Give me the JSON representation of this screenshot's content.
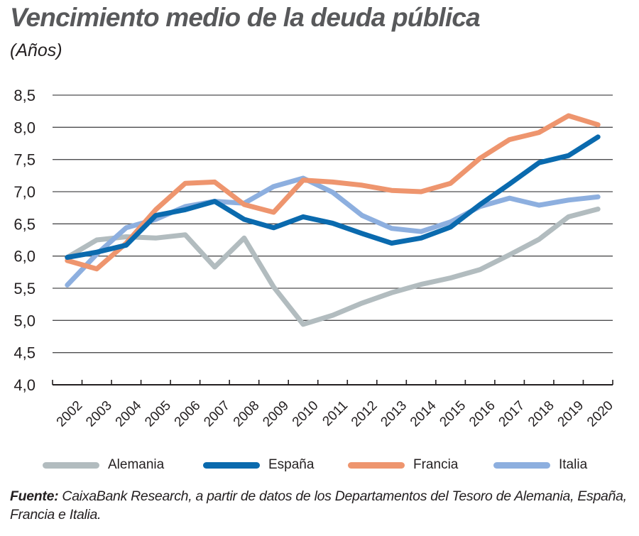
{
  "chart_data": {
    "type": "line",
    "title": "Vencimiento medio de la deuda pública",
    "subtitle": "(Años)",
    "xlabel": "",
    "ylabel": "",
    "x": [
      "2002",
      "2003",
      "2004",
      "2005",
      "2006",
      "2007",
      "2008",
      "2009",
      "2010",
      "2011",
      "2012",
      "2013",
      "2014",
      "2015",
      "2016",
      "2017",
      "2018",
      "2019",
      "2020"
    ],
    "ylim": [
      4.0,
      8.5
    ],
    "yticks": [
      "8,5",
      "8,0",
      "7,5",
      "7,0",
      "6,5",
      "6,0",
      "5,5",
      "5,0",
      "4,5",
      "4,0"
    ],
    "ytick_values": [
      8.5,
      8.0,
      7.5,
      7.0,
      6.5,
      6.0,
      5.5,
      5.0,
      4.5,
      4.0
    ],
    "grid": true,
    "legend_position": "bottom",
    "series": [
      {
        "name": "Alemania",
        "color": "#b2bcbf",
        "values": [
          5.98,
          6.25,
          6.3,
          6.28,
          6.33,
          5.83,
          6.28,
          5.52,
          4.94,
          5.08,
          5.27,
          5.43,
          5.56,
          5.66,
          5.79,
          6.02,
          6.26,
          6.61,
          6.73
        ]
      },
      {
        "name": "España",
        "color": "#0a6aae",
        "values": [
          5.98,
          6.06,
          6.17,
          6.63,
          6.72,
          6.85,
          6.57,
          6.44,
          6.61,
          6.51,
          6.35,
          6.2,
          6.28,
          6.45,
          6.8,
          7.12,
          7.45,
          7.56,
          7.85
        ]
      },
      {
        "name": "Francia",
        "color": "#ee956e",
        "values": [
          5.93,
          5.8,
          6.2,
          6.72,
          7.13,
          7.15,
          6.8,
          6.68,
          7.18,
          7.15,
          7.1,
          7.02,
          7.0,
          7.13,
          7.52,
          7.81,
          7.92,
          8.18,
          8.04
        ]
      },
      {
        "name": "Italia",
        "color": "#8dafdf",
        "values": [
          5.55,
          6.03,
          6.44,
          6.57,
          6.77,
          6.85,
          6.82,
          7.08,
          7.21,
          6.99,
          6.63,
          6.43,
          6.38,
          6.53,
          6.77,
          6.9,
          6.79,
          6.87,
          6.92
        ]
      }
    ]
  },
  "source": {
    "label": "Fuente:",
    "text": " CaixaBank Research, a partir de datos de los Departamentos del Tesoro de Alemania, España, Francia e Italia."
  }
}
